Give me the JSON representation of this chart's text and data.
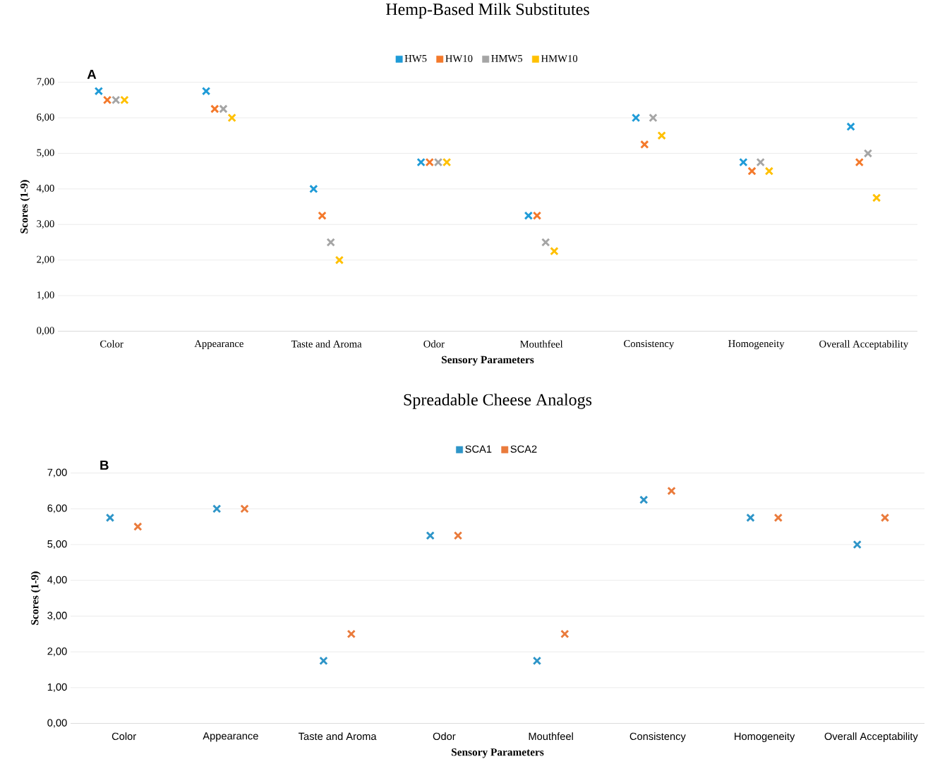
{
  "chart_data": [
    {
      "type": "scatter",
      "title": "Hemp-Based Milk Substitutes",
      "xlabel": "Sensory Parameters",
      "ylabel": "Scores (1-9)",
      "annotations": [
        "A"
      ],
      "categories": [
        "Color",
        "Appearance",
        "Taste and Aroma",
        "Odor",
        "Mouthfeel",
        "Consistency",
        "Homogeneity",
        "Overall Acceptability"
      ],
      "series": [
        {
          "name": "HW5",
          "color": "#1f9bd7",
          "values": [
            6.75,
            6.75,
            4.0,
            4.75,
            3.25,
            6.0,
            4.75,
            5.75
          ]
        },
        {
          "name": "HW10",
          "color": "#f4792b",
          "values": [
            6.5,
            6.25,
            3.25,
            4.75,
            3.25,
            5.25,
            4.5,
            4.75
          ]
        },
        {
          "name": "HMW5",
          "color": "#a5a5a5",
          "values": [
            6.5,
            6.25,
            2.5,
            4.75,
            2.5,
            6.0,
            4.75,
            5.0
          ]
        },
        {
          "name": "HMW10",
          "color": "#ffc000",
          "values": [
            6.5,
            6.0,
            2.0,
            4.75,
            2.25,
            5.5,
            4.5,
            3.75
          ]
        }
      ],
      "ylim": [
        0,
        7
      ],
      "yticks": [
        {
          "value": 0,
          "label": "0,00"
        },
        {
          "value": 1,
          "label": "1,00"
        },
        {
          "value": 2,
          "label": "2,00"
        },
        {
          "value": 3,
          "label": "3,00"
        },
        {
          "value": 4,
          "label": "4,00"
        },
        {
          "value": 5,
          "label": "5,00"
        },
        {
          "value": 6,
          "label": "6,00"
        },
        {
          "value": 7,
          "label": "7,00"
        }
      ],
      "grid": "y",
      "legend": "top",
      "marker": "cross"
    },
    {
      "type": "scatter",
      "title": "Spreadable Cheese Analogs",
      "xlabel": "Sensory Parameters",
      "ylabel": "Scores (1-9)",
      "annotations": [
        "B"
      ],
      "categories": [
        "Color",
        "Appearance",
        "Taste and Aroma",
        "Odor",
        "Mouthfeel",
        "Consistency",
        "Homogeneity",
        "Overall Acceptability"
      ],
      "series": [
        {
          "name": "SCA1",
          "color": "#2e95c8",
          "values": [
            5.75,
            6.0,
            1.75,
            5.25,
            1.75,
            6.25,
            5.75,
            5.0
          ]
        },
        {
          "name": "SCA2",
          "color": "#ea7b3c",
          "values": [
            5.5,
            6.0,
            2.5,
            5.25,
            2.5,
            6.5,
            5.75,
            5.75
          ]
        }
      ],
      "ylim": [
        0,
        7
      ],
      "yticks": [
        {
          "value": 0,
          "label": "0,00"
        },
        {
          "value": 1,
          "label": "1,00"
        },
        {
          "value": 2,
          "label": "2,00"
        },
        {
          "value": 3,
          "label": "3,00"
        },
        {
          "value": 4,
          "label": "4,00"
        },
        {
          "value": 5,
          "label": "5,00"
        },
        {
          "value": 6,
          "label": "6,00"
        },
        {
          "value": 7,
          "label": "7,00"
        }
      ],
      "grid": "y",
      "legend": "top",
      "marker": "cross"
    }
  ]
}
